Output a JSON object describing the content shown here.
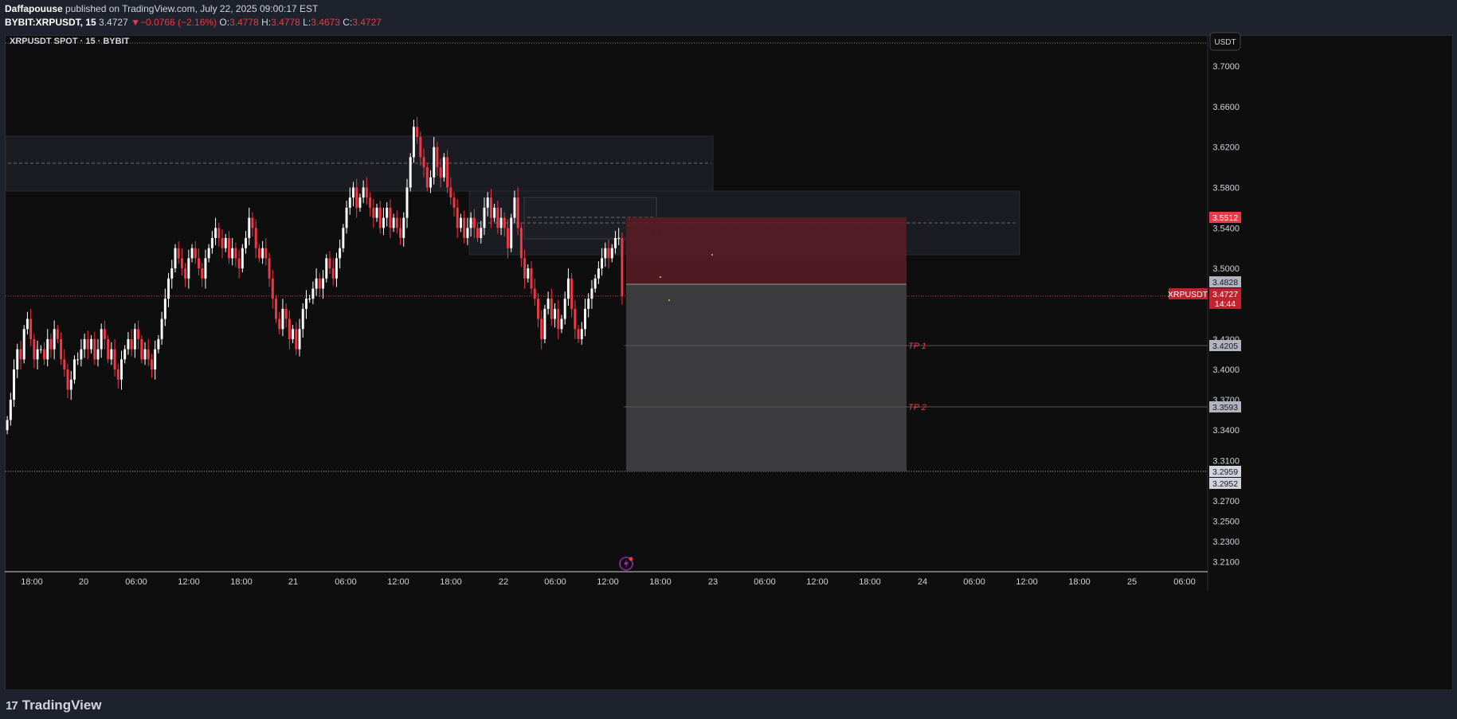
{
  "header": {
    "author": "Daffapouuse",
    "published": " published on TradingView.com, July 22, 2025 09:00:17 EST",
    "symbol_line": "BYBIT:XRPUSDT, 15",
    "last": "3.4727",
    "change": "−0.0766 (−2.16%)",
    "o_label": "O:",
    "o": "3.4778",
    "h_label": "H:",
    "h": "3.4778",
    "l_label": "L:",
    "l": "3.4673",
    "c_label": "C:",
    "c": "3.4727"
  },
  "chart_title": "XRPUSDT SPOT · 15 · BYBIT",
  "currency_button": "USDT",
  "footer": {
    "brand": "TradingView",
    "mark": "17"
  },
  "colors": {
    "up": "#ffffff",
    "down": "#f23645",
    "bg": "#0e0e0e",
    "axis_text": "#d1d4dc",
    "zone": "#1b1c21",
    "stop": "#5a1c24",
    "target": "#3b3b3d"
  },
  "price_badges": [
    {
      "value": "3.5512",
      "bg": "#f23645",
      "fg": "#ffffff"
    },
    {
      "value": "3.4828",
      "bg": "#b2b5be",
      "fg": "#131722"
    },
    {
      "value": "3.4727",
      "bg": "#c2212e",
      "fg": "#ffffff"
    },
    {
      "value": "14:44",
      "bg": "#c2212e",
      "fg": "#ffffff"
    },
    {
      "value": "3.4205",
      "bg": "#b2b5be",
      "fg": "#131722"
    },
    {
      "value": "3.3593",
      "bg": "#b2b5be",
      "fg": "#131722"
    },
    {
      "value": "3.2959",
      "bg": "#d1d4dc",
      "fg": "#131722"
    },
    {
      "value": "3.2952",
      "bg": "#d1d4dc",
      "fg": "#131722"
    }
  ],
  "symbol_badge": "XRPUSDT",
  "target_labels": [
    "TP 1",
    "TP 2"
  ],
  "chart_data": {
    "type": "candlestick",
    "symbol": "XRPUSDT",
    "exchange": "BYBIT",
    "interval": "15",
    "y_ticks": [
      "3.7000",
      "3.6600",
      "3.6200",
      "3.5800",
      "3.5400",
      "3.5000",
      "3.4300",
      "3.4000",
      "3.3700",
      "3.3400",
      "3.3100",
      "3.2700",
      "3.2500",
      "3.2300",
      "3.2100"
    ],
    "x_ticks": [
      "18:00",
      "20",
      "06:00",
      "12:00",
      "18:00",
      "21",
      "06:00",
      "12:00",
      "18:00",
      "22",
      "06:00",
      "12:00",
      "18:00",
      "23",
      "06:00",
      "12:00",
      "18:00",
      "24",
      "06:00",
      "12:00",
      "18:00",
      "25",
      "06:00"
    ],
    "price_range": [
      3.2,
      3.73
    ],
    "last_price": 3.4727,
    "closes": [
      3.35,
      3.37,
      3.4,
      3.42,
      3.41,
      3.44,
      3.45,
      3.43,
      3.41,
      3.42,
      3.42,
      3.41,
      3.43,
      3.42,
      3.44,
      3.43,
      3.41,
      3.4,
      3.38,
      3.39,
      3.41,
      3.41,
      3.42,
      3.43,
      3.42,
      3.43,
      3.41,
      3.42,
      3.44,
      3.43,
      3.41,
      3.42,
      3.4,
      3.39,
      3.41,
      3.42,
      3.43,
      3.42,
      3.44,
      3.43,
      3.41,
      3.42,
      3.41,
      3.4,
      3.42,
      3.43,
      3.45,
      3.47,
      3.49,
      3.5,
      3.52,
      3.51,
      3.5,
      3.49,
      3.51,
      3.52,
      3.51,
      3.5,
      3.49,
      3.51,
      3.52,
      3.53,
      3.54,
      3.53,
      3.52,
      3.53,
      3.51,
      3.52,
      3.51,
      3.5,
      3.52,
      3.53,
      3.55,
      3.54,
      3.52,
      3.51,
      3.52,
      3.51,
      3.49,
      3.47,
      3.45,
      3.44,
      3.46,
      3.45,
      3.43,
      3.44,
      3.42,
      3.44,
      3.46,
      3.47,
      3.47,
      3.48,
      3.49,
      3.48,
      3.49,
      3.51,
      3.5,
      3.49,
      3.51,
      3.52,
      3.54,
      3.56,
      3.57,
      3.58,
      3.56,
      3.57,
      3.58,
      3.57,
      3.56,
      3.55,
      3.56,
      3.54,
      3.55,
      3.56,
      3.54,
      3.55,
      3.54,
      3.53,
      3.55,
      3.58,
      3.61,
      3.64,
      3.63,
      3.61,
      3.6,
      3.58,
      3.59,
      3.62,
      3.6,
      3.59,
      3.61,
      3.58,
      3.57,
      3.56,
      3.54,
      3.55,
      3.53,
      3.54,
      3.55,
      3.54,
      3.53,
      3.54,
      3.56,
      3.57,
      3.55,
      3.56,
      3.54,
      3.55,
      3.54,
      3.52,
      3.55,
      3.57,
      3.54,
      3.51,
      3.49,
      3.5,
      3.48,
      3.47,
      3.45,
      3.43,
      3.46,
      3.47,
      3.45,
      3.46,
      3.44,
      3.45,
      3.47,
      3.49,
      3.46,
      3.44,
      3.43,
      3.44,
      3.46,
      3.47,
      3.48,
      3.49,
      3.5,
      3.51,
      3.52,
      3.51,
      3.52,
      3.53,
      3.53,
      3.4727
    ]
  }
}
